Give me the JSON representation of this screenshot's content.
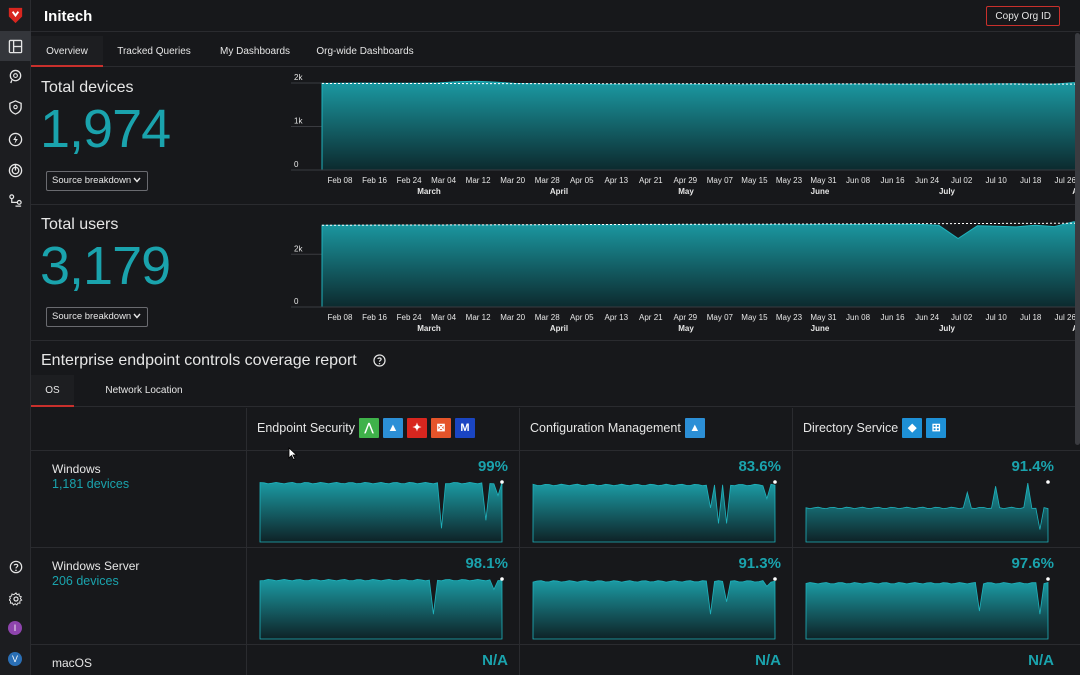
{
  "app": {
    "org_name": "Initech",
    "copy_button": "Copy Org ID"
  },
  "nav_tabs": [
    "Overview",
    "Tracked Queries",
    "My Dashboards",
    "Org-wide Dashboards"
  ],
  "metrics": [
    {
      "label": "Total devices",
      "value": "1,974",
      "dropdown": "Source breakdown",
      "chart_data": {
        "type": "area",
        "y_ticks": [
          "2k",
          "1k",
          "0"
        ],
        "ylim": [
          0,
          2000
        ],
        "x_ticks": [
          "Feb 08",
          "Feb 16",
          "Feb 24",
          "Mar 04",
          "Mar 12",
          "Mar 20",
          "Mar 28",
          "Apr 05",
          "Apr 13",
          "Apr 21",
          "Apr 29",
          "May 07",
          "May 15",
          "May 23",
          "May 31",
          "Jun 08",
          "Jun 16",
          "Jun 24",
          "Jul 02",
          "Jul 10",
          "Jul 18",
          "Jul 26"
        ],
        "months": [
          "March",
          "April",
          "May",
          "June",
          "July",
          "August"
        ],
        "values": [
          1990,
          1995,
          1998,
          1996,
          1994,
          1995,
          2000,
          2030,
          2040,
          2020,
          1990,
          1985,
          1980,
          1975,
          1972,
          1970,
          1972,
          1974,
          1975,
          1970,
          1965,
          1960,
          1962,
          1965,
          1966,
          1968,
          1972,
          1974,
          1975,
          1974,
          1970,
          1972,
          1974,
          1975,
          1974,
          1980,
          1985,
          1975,
          1974,
          2010,
          1974
        ]
      }
    },
    {
      "label": "Total users",
      "value": "3,179",
      "dropdown": "Source breakdown",
      "chart_data": {
        "type": "area",
        "y_ticks": [
          "2k",
          "0"
        ],
        "ylim": [
          0,
          3300
        ],
        "x_ticks": [
          "Feb 08",
          "Feb 16",
          "Feb 24",
          "Mar 04",
          "Mar 12",
          "Mar 20",
          "Mar 28",
          "Apr 05",
          "Apr 13",
          "Apr 21",
          "Apr 29",
          "May 07",
          "May 15",
          "May 23",
          "May 31",
          "Jun 08",
          "Jun 16",
          "Jun 24",
          "Jul 02",
          "Jul 10",
          "Jul 18",
          "Jul 26"
        ],
        "months": [
          "March",
          "April",
          "May",
          "June",
          "July",
          "August"
        ],
        "values": [
          3100,
          3102,
          3104,
          3105,
          3106,
          3105,
          3108,
          3110,
          3112,
          3110,
          3109,
          3110,
          3112,
          3114,
          3115,
          3116,
          3118,
          3120,
          3120,
          3121,
          3122,
          3122,
          3123,
          3125,
          3126,
          3126,
          3128,
          3130,
          3130,
          3131,
          3132,
          3135,
          3100,
          2600,
          3080,
          3060,
          3040,
          3100,
          3050,
          3230,
          3179
        ]
      }
    }
  ],
  "coverage": {
    "title": "Enterprise endpoint controls coverage report",
    "tabs": [
      "OS",
      "Network Location"
    ],
    "columns": [
      {
        "name": "Endpoint Security",
        "icons": [
          "sentinelone-icon",
          "jamf-protect-icon",
          "crowdstrike-icon",
          "sophos-icon",
          "malwarebytes-icon"
        ],
        "icon_colors": [
          "#3fb24a",
          "#2c8fd6",
          "#d8261f",
          "#e5542a",
          "#1a45c2"
        ],
        "icon_glyphs": [
          "⋀",
          "▲",
          "✦",
          "⊠",
          "M"
        ]
      },
      {
        "name": "Configuration Management",
        "icons": [
          "jamf-icon"
        ],
        "icon_colors": [
          "#2c8fd6"
        ],
        "icon_glyphs": [
          "▲"
        ]
      },
      {
        "name": "Directory Service",
        "icons": [
          "azure-ad-icon",
          "windows-icon"
        ],
        "icon_colors": [
          "#1e90d6",
          "#1e90d6"
        ],
        "icon_glyphs": [
          "◆",
          "⊞"
        ]
      }
    ],
    "rows": [
      {
        "os": "Windows",
        "devices": "1,181 devices",
        "values": [
          "99%",
          "83.6%",
          "91.4%"
        ]
      },
      {
        "os": "Windows Server",
        "devices": "206 devices",
        "values": [
          "98.1%",
          "91.3%",
          "97.6%"
        ]
      },
      {
        "os": "macOS",
        "devices": "",
        "values": [
          "N/A",
          "N/A",
          "N/A"
        ]
      }
    ]
  },
  "sidebar": {
    "avatars": [
      {
        "letter": "I",
        "color": "#8e44ad"
      },
      {
        "letter": "V",
        "color": "#2a6fb5"
      }
    ]
  }
}
